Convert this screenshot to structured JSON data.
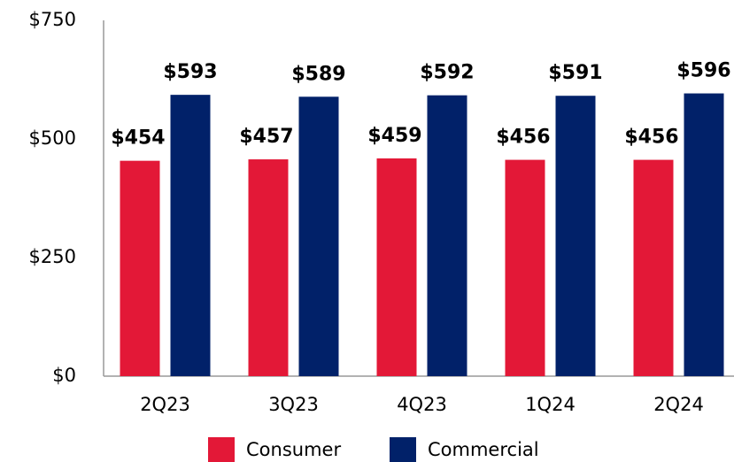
{
  "chart_data": {
    "type": "bar",
    "categories": [
      "2Q23",
      "3Q23",
      "4Q23",
      "1Q24",
      "2Q24"
    ],
    "series": [
      {
        "name": "Consumer",
        "color": "#e31837",
        "values": [
          454,
          457,
          459,
          456,
          456
        ],
        "value_labels": [
          "$454",
          "$457",
          "$459",
          "$456",
          "$456"
        ]
      },
      {
        "name": "Commercial",
        "color": "#012169",
        "values": [
          593,
          589,
          592,
          591,
          596
        ],
        "value_labels": [
          "$593",
          "$589",
          "$592",
          "$591",
          "$596"
        ]
      }
    ],
    "ylim": [
      0,
      750
    ],
    "yticks": [
      {
        "value": 0,
        "label": "$0"
      },
      {
        "value": 250,
        "label": "$250"
      },
      {
        "value": 500,
        "label": "$500"
      },
      {
        "value": 750,
        "label": "$750"
      }
    ],
    "grid": false,
    "legend": "bottom"
  }
}
